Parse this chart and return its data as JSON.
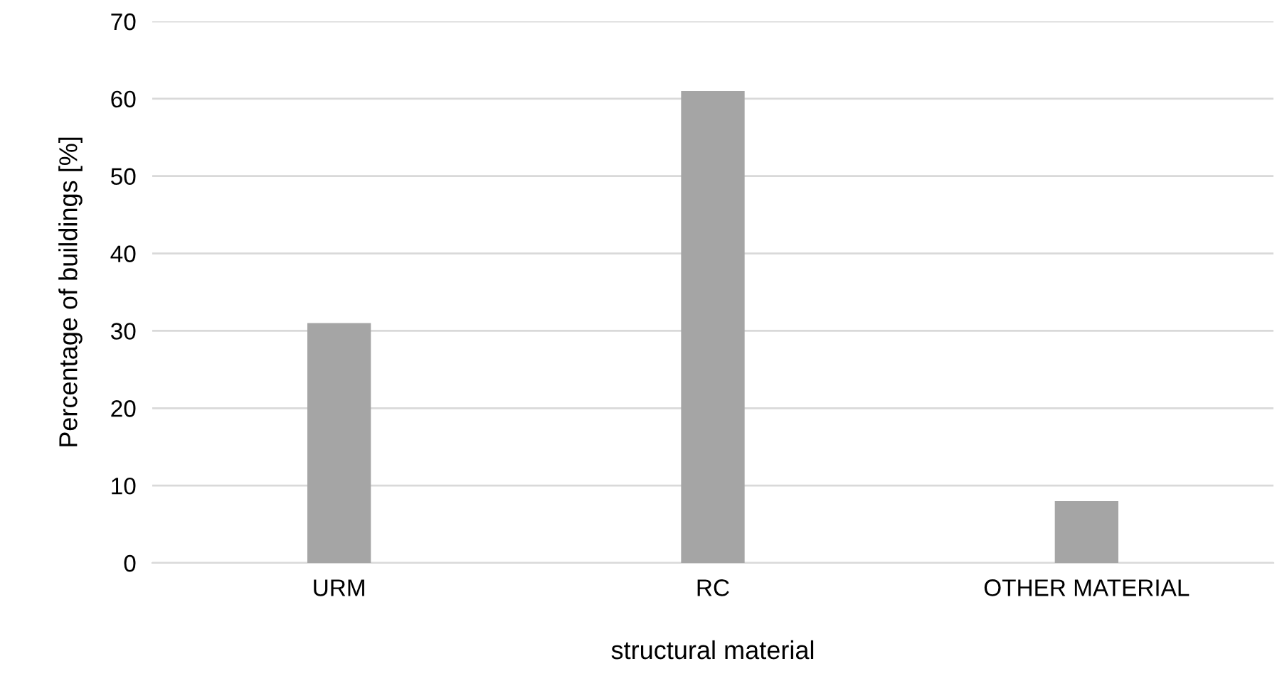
{
  "chart_data": {
    "type": "bar",
    "xlabel": "structural material",
    "ylabel": "Percentage of buildings [%]",
    "categories": [
      "URM",
      "RC",
      "OTHER MATERIAL"
    ],
    "values": [
      31,
      61,
      8
    ],
    "color": "#a5a5a5",
    "ylim": [
      0,
      70
    ],
    "yticks": [
      0,
      10,
      20,
      30,
      40,
      50,
      60,
      70
    ],
    "grid": "y"
  }
}
